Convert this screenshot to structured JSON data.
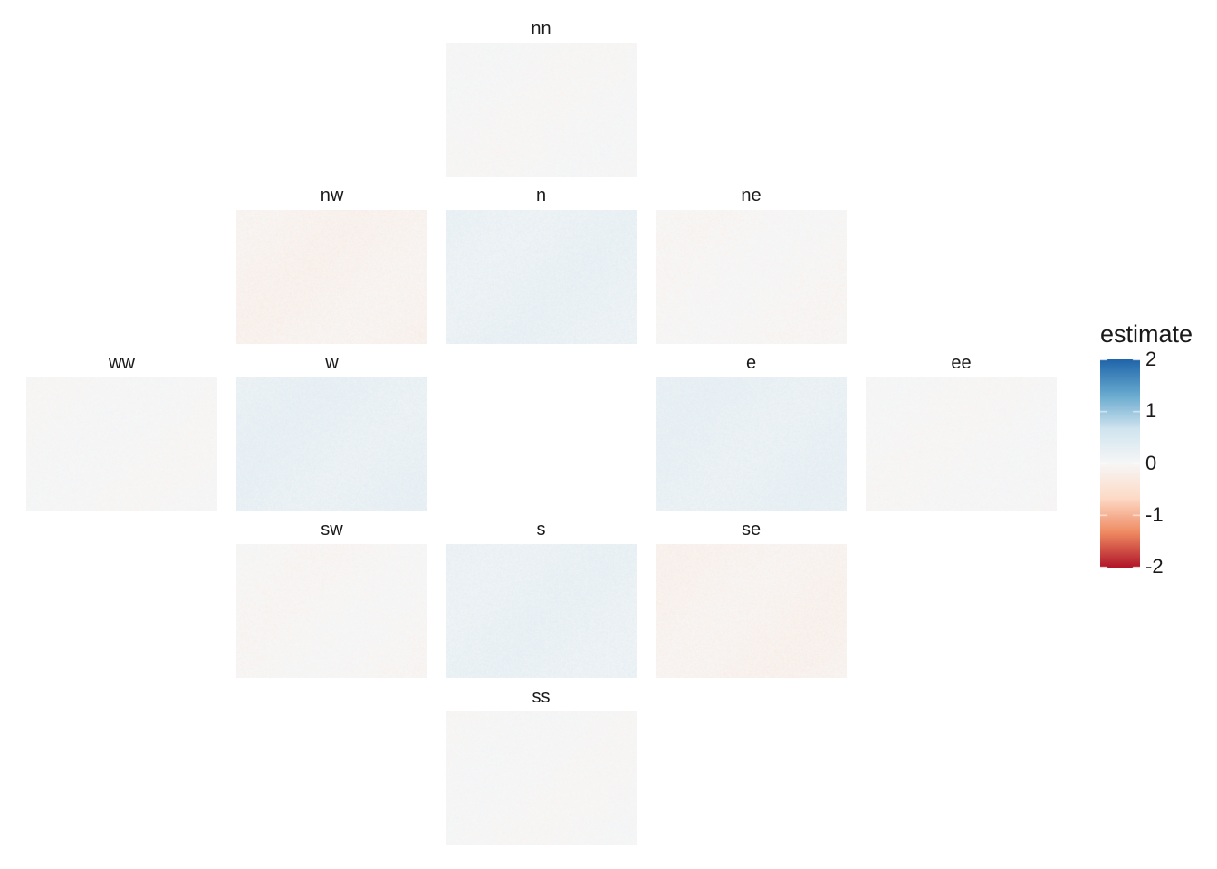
{
  "chart_data": {
    "type": "heatmap",
    "title": "",
    "legend": {
      "title": "estimate",
      "placement": "right",
      "range": [
        -2,
        2
      ],
      "ticks": [
        2,
        1,
        0,
        -1,
        -2
      ],
      "tick_labels": [
        "2",
        "1",
        "0",
        "-1",
        "-2"
      ],
      "palette": [
        "#b2182b",
        "#ef8a62",
        "#fddbc7",
        "#f7f7f7",
        "#d1e5f0",
        "#67a9cf",
        "#2166ac"
      ]
    },
    "panels": [
      {
        "name": "nn",
        "mean_estimate": 0.0
      },
      {
        "name": "nw",
        "mean_estimate": -0.12
      },
      {
        "name": "n",
        "mean_estimate": 0.22
      },
      {
        "name": "ne",
        "mean_estimate": -0.03
      },
      {
        "name": "ww",
        "mean_estimate": 0.0
      },
      {
        "name": "w",
        "mean_estimate": 0.25
      },
      {
        "name": "e",
        "mean_estimate": 0.25
      },
      {
        "name": "ee",
        "mean_estimate": 0.0
      },
      {
        "name": "sw",
        "mean_estimate": -0.03
      },
      {
        "name": "s",
        "mean_estimate": 0.22
      },
      {
        "name": "se",
        "mean_estimate": -0.12
      },
      {
        "name": "ss",
        "mean_estimate": 0.0
      }
    ]
  }
}
